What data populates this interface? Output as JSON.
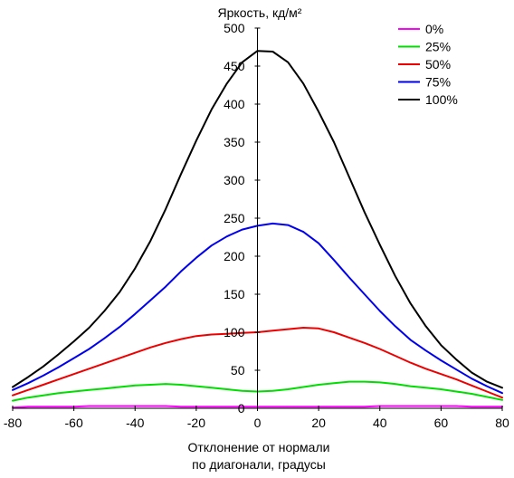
{
  "chart_data": {
    "type": "line",
    "ylabel": "Яркость, кд/м²",
    "xlabel_line1": "Отклонение от нормали",
    "xlabel_line2": "по диагонали, градусы",
    "xlim": [
      -80,
      80
    ],
    "ylim": [
      0,
      500
    ],
    "x_ticks": [
      -80,
      -60,
      -40,
      -20,
      0,
      20,
      40,
      60,
      80
    ],
    "y_ticks": [
      0,
      50,
      100,
      150,
      200,
      250,
      300,
      350,
      400,
      450,
      500
    ],
    "grid": false,
    "legend_position": "top-right",
    "x": [
      -80,
      -75,
      -70,
      -65,
      -60,
      -55,
      -50,
      -45,
      -40,
      -35,
      -30,
      -25,
      -20,
      -15,
      -10,
      -5,
      0,
      5,
      10,
      15,
      20,
      25,
      30,
      35,
      40,
      45,
      50,
      55,
      60,
      65,
      70,
      75,
      80
    ],
    "series": [
      {
        "name": "0%",
        "color": "#ff00ff",
        "values": [
          1,
          2,
          2,
          2,
          2,
          3,
          3,
          3,
          3,
          3,
          3,
          2,
          2,
          2,
          2,
          2,
          2,
          2,
          2,
          2,
          2,
          2,
          2,
          2,
          3,
          3,
          3,
          3,
          3,
          3,
          2,
          2,
          2
        ]
      },
      {
        "name": "25%",
        "color": "#00dd00",
        "values": [
          10,
          14,
          17,
          20,
          22,
          24,
          26,
          28,
          30,
          31,
          32,
          31,
          29,
          27,
          25,
          23,
          22,
          23,
          25,
          28,
          31,
          33,
          35,
          35,
          34,
          32,
          29,
          27,
          25,
          22,
          19,
          15,
          11
        ]
      },
      {
        "name": "50%",
        "color": "#ee0000",
        "values": [
          17,
          24,
          31,
          38,
          45,
          52,
          59,
          66,
          73,
          80,
          86,
          91,
          95,
          97,
          98,
          99,
          100,
          102,
          104,
          106,
          105,
          100,
          93,
          86,
          78,
          69,
          60,
          52,
          45,
          38,
          30,
          22,
          14
        ]
      },
      {
        "name": "75%",
        "color": "#0000ee",
        "values": [
          24,
          33,
          43,
          54,
          66,
          78,
          92,
          107,
          124,
          142,
          160,
          180,
          198,
          214,
          226,
          235,
          240,
          243,
          241,
          232,
          217,
          195,
          172,
          150,
          128,
          108,
          90,
          76,
          63,
          51,
          39,
          29,
          20
        ]
      },
      {
        "name": "100%",
        "color": "#000000",
        "values": [
          28,
          41,
          55,
          71,
          88,
          106,
          128,
          153,
          184,
          220,
          262,
          308,
          352,
          393,
          427,
          455,
          470,
          469,
          455,
          427,
          390,
          350,
          304,
          258,
          215,
          174,
          138,
          108,
          83,
          64,
          47,
          35,
          27
        ]
      }
    ]
  }
}
